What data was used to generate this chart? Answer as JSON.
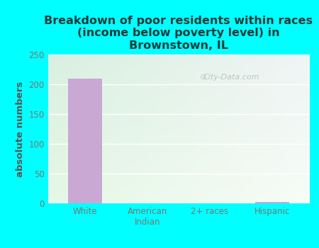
{
  "title": "Breakdown of poor residents within races\n(income below poverty level) in\nBrownstown, IL",
  "categories": [
    "White",
    "American\nIndian",
    "2+ races",
    "Hispanic"
  ],
  "values": [
    210,
    0,
    0,
    2
  ],
  "bar_color": "#c9a8d4",
  "ylabel": "absolute numbers",
  "ylim": [
    0,
    250
  ],
  "yticks": [
    0,
    50,
    100,
    150,
    200,
    250
  ],
  "background_color": "#00ffff",
  "plot_bg_color_topleft": [
    0.85,
    0.94,
    0.88
  ],
  "plot_bg_color_topright": [
    0.94,
    0.96,
    0.96
  ],
  "plot_bg_color_bottomleft": [
    0.9,
    0.97,
    0.9
  ],
  "plot_bg_color_bottomright": [
    0.97,
    0.99,
    0.97
  ],
  "title_color": "#1a3a3a",
  "title_fontsize": 11.5,
  "ylabel_color": "#555555",
  "tick_color": "#777777",
  "watermark": "City-Data.com",
  "grid_color": "#ffffff",
  "grid_linewidth": 1.0
}
